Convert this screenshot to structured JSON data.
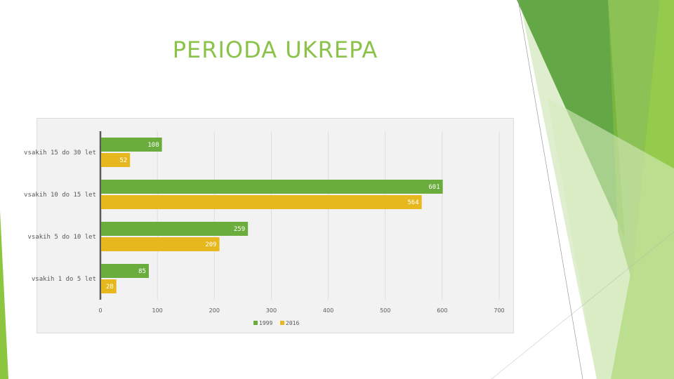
{
  "slide": {
    "title": "PERIODA UKREPA",
    "accent_color": "#8bc34a"
  },
  "chart_data": {
    "type": "bar",
    "orientation": "horizontal",
    "categories": [
      "vsakih 15 do 30 let",
      "vsakih 10 do 15 let",
      "vsakih 5 do 10 let",
      "vsakih 1 do 5 let"
    ],
    "series": [
      {
        "name": "1999",
        "values": [
          108,
          601,
          259,
          85
        ],
        "color": "#6aad3d"
      },
      {
        "name": "2016",
        "values": [
          52,
          564,
          209,
          28
        ],
        "color": "#e6b81e"
      }
    ],
    "xlim": [
      0,
      700
    ],
    "xticks": [
      0,
      100,
      200,
      300,
      400,
      500,
      600,
      700
    ],
    "grid": true,
    "legend_position": "bottom",
    "data_labels": true
  }
}
